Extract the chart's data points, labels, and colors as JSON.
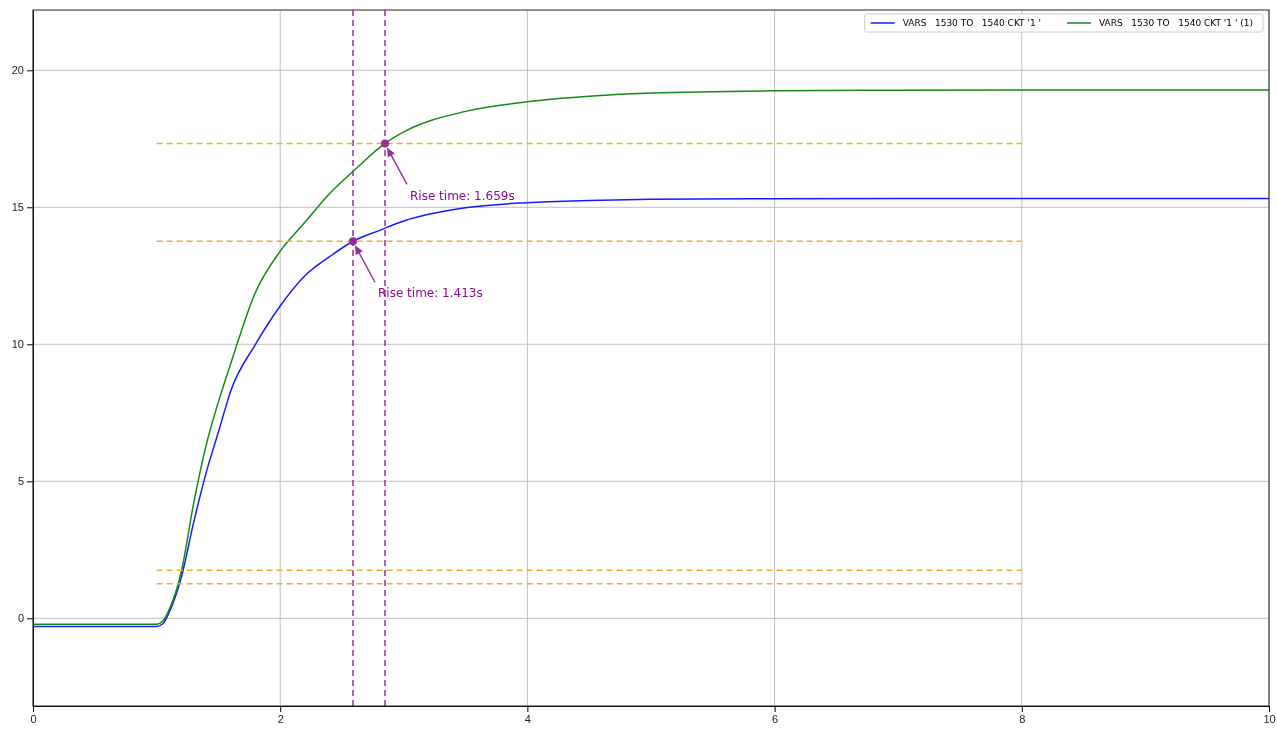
{
  "chart_data": {
    "type": "line",
    "xlim": [
      0,
      10
    ],
    "ylim": [
      -3.2,
      22.2
    ],
    "xticks": [
      0,
      2,
      4,
      6,
      8,
      10
    ],
    "yticks": [
      0,
      5,
      10,
      15,
      20
    ],
    "grid": true,
    "legend": "top right",
    "line_style": "solid",
    "series": [
      {
        "name": "VARS   1530 TO   1540 CKT '1 '",
        "color": "#1a1aff",
        "x": [
          0,
          1,
          1.05,
          1.1,
          1.2,
          1.3,
          1.4,
          1.5,
          1.6,
          1.8,
          2,
          2.2,
          2.4,
          2.589,
          2.8,
          3,
          3.5,
          4,
          4.5,
          5,
          6,
          7,
          8,
          10
        ],
        "values": [
          -0.3,
          -0.3,
          -0.2,
          0.2,
          1.5,
          3.5,
          5.3,
          6.8,
          8.3,
          10,
          11.4,
          12.5,
          13.2,
          13.76,
          14.15,
          14.5,
          14.98,
          15.17,
          15.25,
          15.29,
          15.31,
          15.32,
          15.32,
          15.32
        ]
      },
      {
        "name": "VARS   1530 TO   1540 CKT '1 ' (1)",
        "color": "#168a16",
        "x": [
          0,
          1,
          1.05,
          1.1,
          1.2,
          1.3,
          1.4,
          1.5,
          1.6,
          1.8,
          2,
          2.2,
          2.4,
          2.6,
          2.848,
          3,
          3.5,
          4,
          4.5,
          5,
          6,
          7,
          8,
          10
        ],
        "values": [
          -0.22,
          -0.22,
          -0.1,
          0.3,
          1.7,
          4.2,
          6.3,
          7.9,
          9.3,
          11.9,
          13.4,
          14.45,
          15.5,
          16.35,
          17.33,
          17.75,
          18.5,
          18.85,
          19.05,
          19.17,
          19.25,
          19.27,
          19.28,
          19.28
        ]
      },
      {
        "type": "line",
        "color": "#e8b030",
        "line_style": "dashed",
        "x": [
          1,
          8
        ],
        "values": [
          17.33,
          17.33
        ]
      },
      {
        "type": "line",
        "color": "#e8b030",
        "line_style": "dashed",
        "x": [
          1,
          8
        ],
        "values": [
          13.76,
          13.76
        ]
      },
      {
        "type": "line",
        "color": "#e8b030",
        "line_style": "dashed",
        "x": [
          1,
          8
        ],
        "values": [
          1.75,
          1.75
        ]
      },
      {
        "type": "line",
        "color": "#e8b030",
        "line_style": "dashed",
        "x": [
          1,
          8
        ],
        "values": [
          1.26,
          1.26
        ]
      },
      {
        "type": "scatter",
        "color": "#952d98",
        "marker": "circle",
        "x": [
          2.589,
          2.848
        ],
        "values": [
          13.76,
          17.33
        ]
      }
    ],
    "ref_lines": [
      {
        "axis": "x",
        "value": 2.589,
        "color": "#952d98",
        "line_style": "dashed"
      },
      {
        "axis": "x",
        "value": 2.848,
        "color": "#952d98",
        "line_style": "dashed"
      }
    ],
    "annotations": [
      "Rise time: 1.413s",
      "Rise time: 1.659s"
    ]
  }
}
